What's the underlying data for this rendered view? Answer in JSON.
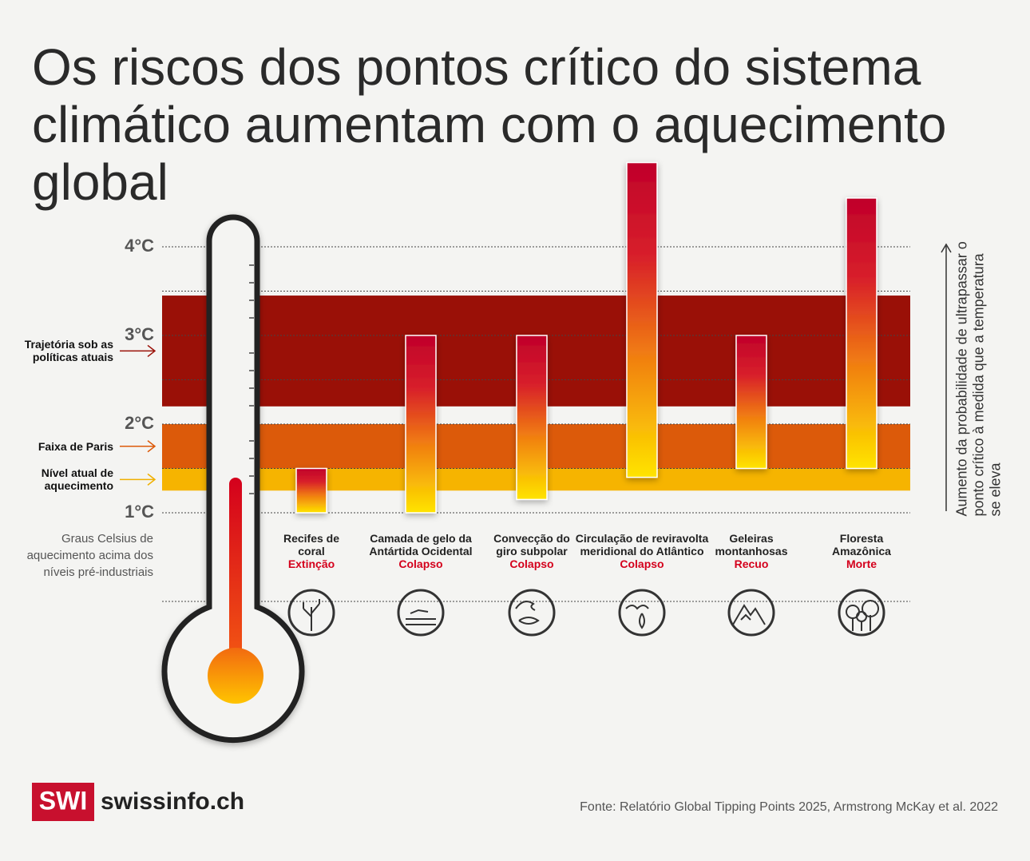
{
  "chart_data": {
    "type": "floating-bar",
    "title": "Os riscos dos pontos crítico do sistema climático aumentam com o aquecimento global",
    "categories": [
      "Recifes de coral",
      "Camada de gelo da Antártida Ocidental",
      "Convecção do giro subpolar",
      "Circulação de reviravolta meridional do Atlântico",
      "Geleiras montanhosas",
      "Floresta Amazônica"
    ],
    "outcomes": [
      "Extinção",
      "Colapso",
      "Colapso",
      "Colapso",
      "Recuo",
      "Morte"
    ],
    "low": [
      1.0,
      1.0,
      1.15,
      1.4,
      1.5,
      1.5
    ],
    "high": [
      1.5,
      3.0,
      3.0,
      4.95,
      3.0,
      4.55
    ],
    "bands": [
      {
        "label": "Trajetória sob as políticas atuais",
        "low": 2.2,
        "high": 3.45,
        "color": "#9a1007"
      },
      {
        "label": "Faixa de Paris",
        "low": 1.5,
        "high": 2.0,
        "color": "#dc5a0a"
      },
      {
        "label": "Nível atual de aquecimento",
        "low": 1.25,
        "high": 1.5,
        "color": "#f6b400"
      }
    ],
    "ylim": [
      0,
      5
    ],
    "yticks": [
      {
        "value": 1,
        "label": "1°C"
      },
      {
        "value": 2,
        "label": "2°C"
      },
      {
        "value": 3,
        "label": "3°C"
      },
      {
        "value": 4,
        "label": "4°C"
      }
    ],
    "minor_yticks": [
      0,
      1.5,
      2.5,
      3.5
    ],
    "y_label": "Graus Celsius de aquecimento acima dos níveis pré-industriais",
    "right_label": "Aumento da probabilidade de ultrapassar o ponto crítico à medida que a temperatura se eleva",
    "source": "Fonte: Relatório Global Tipping Points 2025, Armstrong McKay et al. 2022",
    "logo": "SWI",
    "brand": "swissinfo.ch"
  }
}
